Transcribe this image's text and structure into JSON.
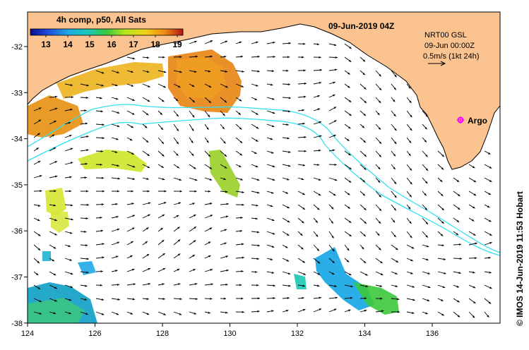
{
  "map": {
    "title": "09-Jun-2019 04Z",
    "colorbar": {
      "label": "4h comp, p50, All Sats",
      "ticks": [
        "13",
        "14",
        "15",
        "16",
        "17",
        "18",
        "19"
      ]
    },
    "info": {
      "line1": "NRT00 GSL",
      "line2": "09-Jun 00:00Z",
      "line3": "0.5m/s (1kt 24h)"
    },
    "argo_label": "Argo",
    "credit": "© IMOS 14-Jun-2019 11:53 Hobart",
    "x_ticks": [
      "124",
      "126",
      "128",
      "130",
      "132",
      "134",
      "136"
    ],
    "y_ticks": [
      "-32",
      "-33",
      "-34",
      "-35",
      "-36",
      "-37",
      "-38"
    ],
    "colors": {
      "land": "#fbc38f",
      "isobath": "#33e0f0",
      "argo": "#ff00ff",
      "frame": "#000000"
    }
  }
}
